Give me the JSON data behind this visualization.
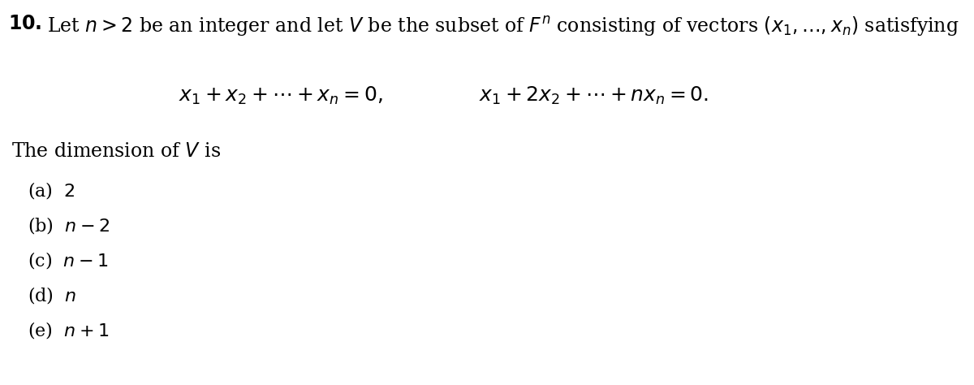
{
  "background_color": "#ffffff",
  "fig_width": 12.0,
  "fig_height": 4.74,
  "dpi": 100,
  "question_number": "\\textbf{10.}",
  "intro_text": "Let $n > 2$ be an integer and let $V$ be the subset of $F^n$ consisting of vectors $(x_1,\\ldots,x_n)$ satisfying",
  "equation1": "$x_1 + x_2 + \\cdots + x_n = 0,$",
  "equation2": "$x_1 + 2x_2 + \\cdots + nx_n = 0.$",
  "dimension_text": "The dimension of $V$ is",
  "choices": [
    "(a)  $2$",
    "(b)  $n - 2$",
    "(c)  $n - 1$",
    "(d)  $n$",
    "(e)  $n + 1$"
  ],
  "fontsize_main": 17,
  "fontsize_eq": 18,
  "fontsize_choices": 16
}
